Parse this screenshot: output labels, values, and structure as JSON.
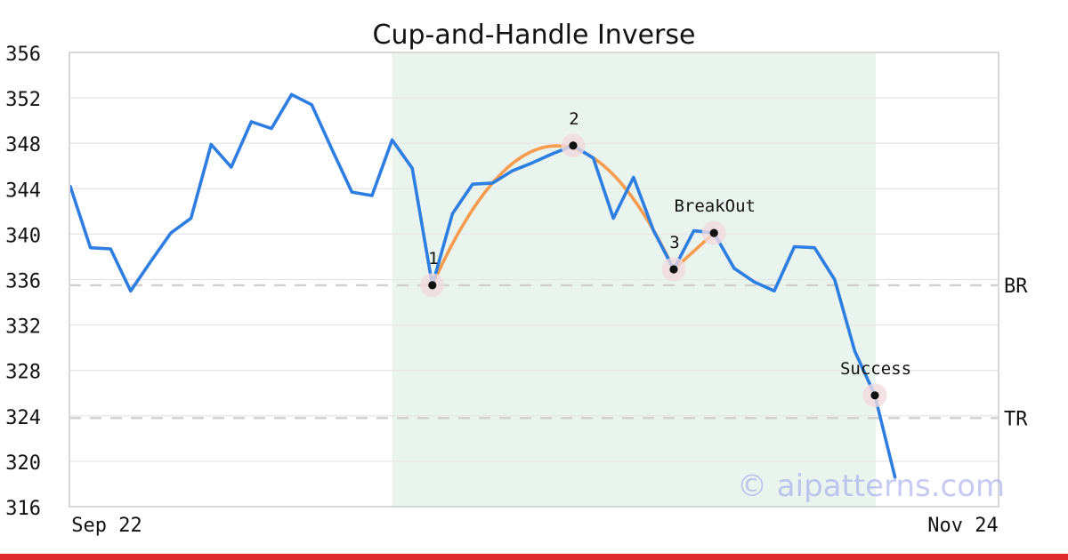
{
  "title": "Cup-and-Handle Inverse",
  "watermark": "© aipatterns.com",
  "footer": {
    "bar_color": "#de2a2b"
  },
  "chart_data": {
    "type": "line",
    "title": "Cup-and-Handle Inverse",
    "x_axis": {
      "tick_labels": [
        "Sep 22",
        "Nov 24"
      ],
      "grid": false
    },
    "y_axis": {
      "range": [
        316,
        356
      ],
      "ticks": [
        316,
        320,
        324,
        328,
        332,
        336,
        340,
        344,
        348,
        352,
        356
      ],
      "grid": true
    },
    "series": [
      {
        "name": "price",
        "color": "#2e7de1",
        "values": [
          344.2,
          338.8,
          338.7,
          335.0,
          337.6,
          340.1,
          341.4,
          347.9,
          345.9,
          349.9,
          349.3,
          352.3,
          351.4,
          347.5,
          343.7,
          343.4,
          348.3,
          345.8,
          335.5,
          341.8,
          344.4,
          344.5,
          345.6,
          346.3,
          347.1,
          347.8,
          346.7,
          341.4,
          345.0,
          340.3,
          336.9,
          340.3,
          340.1,
          337.0,
          335.8,
          335.0,
          338.9,
          338.8,
          336.0,
          329.7,
          325.8,
          318.6
        ]
      },
      {
        "name": "cup-arc",
        "color": "#f79b4e",
        "anchor_points": [
          {
            "index": 18,
            "value": 335.5
          },
          {
            "index": 25.4,
            "value": 347.3
          },
          {
            "index": 30,
            "value": 336.9
          }
        ]
      },
      {
        "name": "handle-line",
        "color": "#f79b4e",
        "points": [
          {
            "index": 30,
            "value": 336.9
          },
          {
            "index": 32,
            "value": 340.1
          }
        ]
      }
    ],
    "pattern_markers": [
      {
        "label": "1",
        "index": 18,
        "value": 335.5
      },
      {
        "label": "2",
        "index": 25,
        "value": 347.8
      },
      {
        "label": "3",
        "index": 30,
        "value": 336.9
      },
      {
        "label": "BreakOut",
        "index": 32,
        "value": 340.1
      },
      {
        "label": "Success",
        "index": 40,
        "value": 325.8
      }
    ],
    "reference_lines": [
      {
        "label": "BR",
        "value": 335.5
      },
      {
        "label": "TR",
        "value": 323.8
      }
    ],
    "shaded_region": {
      "start_index": 16,
      "end_index": 40,
      "color": "#e9f4ee"
    },
    "legend": false,
    "colors": {
      "price_line": "#2e7de1",
      "pattern_line": "#f79b4e",
      "marker_dot": "#111111",
      "marker_halo": "#f0d9de",
      "grid": "#e6e6e6",
      "reference_dash": "#cfcfcf",
      "plot_border": "#d7d7d7",
      "tick_text": "#111111",
      "annotation_text": "#111111"
    }
  }
}
